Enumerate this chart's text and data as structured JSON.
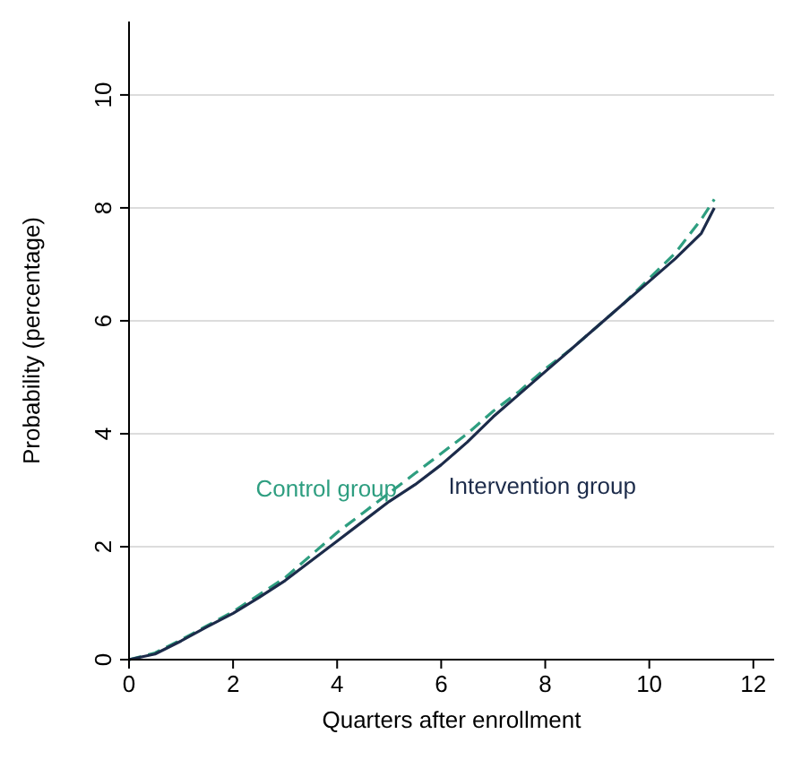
{
  "chart_data": {
    "type": "line",
    "xlabel": "Quarters after enrollment",
    "ylabel": "Probability (percentage)",
    "x": [
      0,
      0.5,
      1,
      1.5,
      2,
      2.5,
      3,
      3.5,
      4,
      4.5,
      5,
      5.5,
      6,
      6.5,
      7,
      7.5,
      8,
      8.5,
      9,
      9.5,
      10,
      10.5,
      11,
      11.25
    ],
    "series": [
      {
        "name": "Control group",
        "color": "#2e9e80",
        "line_style": "dashed",
        "values": [
          0,
          0.12,
          0.35,
          0.6,
          0.85,
          1.15,
          1.45,
          1.85,
          2.25,
          2.6,
          2.95,
          3.3,
          3.65,
          4.0,
          4.4,
          4.75,
          5.15,
          5.5,
          5.9,
          6.3,
          6.75,
          7.2,
          7.8,
          8.15
        ]
      },
      {
        "name": "Intervention group",
        "color": "#1c2b4a",
        "line_style": "solid",
        "values": [
          0,
          0.1,
          0.33,
          0.58,
          0.82,
          1.1,
          1.4,
          1.75,
          2.1,
          2.45,
          2.8,
          3.1,
          3.45,
          3.85,
          4.3,
          4.7,
          5.1,
          5.5,
          5.9,
          6.3,
          6.7,
          7.1,
          7.55,
          8.0
        ]
      }
    ],
    "xlim": [
      0,
      12.4
    ],
    "ylim": [
      0,
      11.3
    ],
    "xticks": [
      0,
      2,
      4,
      6,
      8,
      10,
      12
    ],
    "yticks": [
      0,
      2,
      4,
      6,
      8,
      10
    ],
    "grid": "y"
  }
}
